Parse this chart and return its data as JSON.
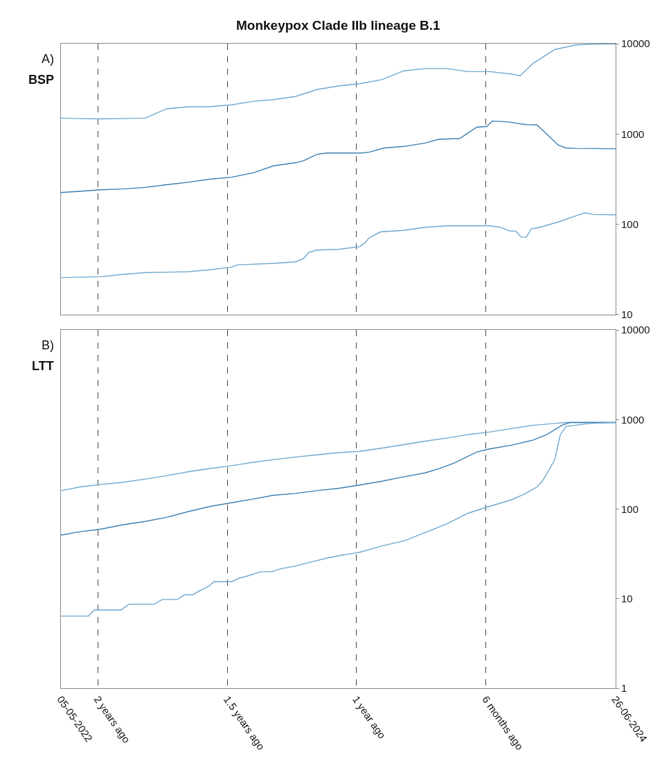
{
  "chart_data": [
    {
      "type": "line",
      "title": "Monkeypox Clade IIb lineage B.1",
      "annotations": [
        "A)",
        "BSP"
      ],
      "log": "y",
      "grid": "x",
      "tick_labels": "y",
      "xlim": [
        "2022-05-05",
        "2024-06-26"
      ],
      "xticks": [
        {
          "value": "2022-05-05",
          "label": null
        },
        {
          "value": "2022-06-26",
          "label": null
        },
        {
          "value": "2022-12-26",
          "label": null
        },
        {
          "value": "2023-06-26",
          "label": null
        },
        {
          "value": "2023-12-26",
          "label": null
        },
        {
          "value": "2024-06-26",
          "label": null
        }
      ],
      "ylim": [
        10,
        10000
      ],
      "yticks": [
        10,
        100,
        1000,
        10000
      ],
      "series": [
        {
          "color": "#6fa8d0",
          "x": [
            "2022-05-05",
            "2022-06-01",
            "2022-07-01",
            "2022-08-01",
            "2022-09-01",
            "2022-10-01",
            "2022-11-01",
            "2022-12-01",
            "2023-01-01",
            "2023-02-01",
            "2023-03-01",
            "2023-04-01",
            "2023-05-01",
            "2023-06-01",
            "2023-07-01",
            "2023-08-01",
            "2023-09-01",
            "2023-10-01",
            "2023-11-01",
            "2023-12-01",
            "2024-01-01",
            "2024-02-01",
            "2024-02-12",
            "2024-03-01",
            "2024-04-01",
            "2024-05-01",
            "2024-06-01",
            "2024-06-26"
          ],
          "values": [
            1500,
            1480,
            1470,
            1480,
            1500,
            1900,
            2000,
            2000,
            2100,
            2300,
            2400,
            2600,
            3100,
            3400,
            3600,
            4000,
            5000,
            5300,
            5300,
            4900,
            4900,
            4600,
            4400,
            6000,
            8600,
            9700,
            9900,
            9900
          ]
        },
        {
          "color": "#3a7fb3",
          "x": [
            "2022-05-05",
            "2022-06-01",
            "2022-07-01",
            "2022-08-01",
            "2022-09-01",
            "2022-10-01",
            "2022-11-01",
            "2022-12-01",
            "2023-01-01",
            "2023-02-01",
            "2023-03-01",
            "2023-04-01",
            "2023-04-12",
            "2023-05-01",
            "2023-05-15",
            "2023-07-03",
            "2023-07-14",
            "2023-08-04",
            "2023-09-01",
            "2023-10-01",
            "2023-10-20",
            "2023-11-19",
            "2023-11-27",
            "2023-12-13",
            "2023-12-27",
            "2024-01-04",
            "2024-01-26",
            "2024-02-20",
            "2024-03-07",
            "2024-04-06",
            "2024-04-17",
            "2024-05-01",
            "2024-06-26"
          ],
          "values": [
            225,
            232,
            241,
            246,
            256,
            274,
            292,
            316,
            332,
            373,
            444,
            480,
            503,
            593,
            616,
            616,
            628,
            700,
            727,
            793,
            873,
            891,
            982,
            1190,
            1210,
            1390,
            1360,
            1270,
            1260,
            755,
            700,
            692,
            686
          ]
        },
        {
          "color": "#6fa8d0",
          "x": [
            "2022-05-05",
            "2022-07-01",
            "2022-08-01",
            "2022-09-01",
            "2022-11-01",
            "2022-12-01",
            "2023-01-01",
            "2023-01-09",
            "2023-03-01",
            "2023-04-01",
            "2023-04-12",
            "2023-04-20",
            "2023-05-01",
            "2023-06-01",
            "2023-07-01",
            "2023-07-08",
            "2023-07-14",
            "2023-07-30",
            "2023-09-01",
            "2023-10-01",
            "2023-11-01",
            "2023-12-01",
            "2024-01-01",
            "2024-01-15",
            "2024-01-29",
            "2024-02-06",
            "2024-02-14",
            "2024-02-21",
            "2024-02-28",
            "2024-03-10",
            "2024-04-06",
            "2024-05-01",
            "2024-05-14",
            "2024-05-25",
            "2024-06-26"
          ],
          "values": [
            25.6,
            26.3,
            27.9,
            29.2,
            29.8,
            31.3,
            33.5,
            35.5,
            36.9,
            38.4,
            41.5,
            48.9,
            51.8,
            52.8,
            56.5,
            62.2,
            70.6,
            82.4,
            85.7,
            92.5,
            96.2,
            96.2,
            96.2,
            92.5,
            84,
            84,
            72,
            72,
            89,
            92,
            106,
            124,
            134,
            128.5,
            127
          ]
        }
      ]
    },
    {
      "type": "line",
      "annotations": [
        "B)",
        "LTT"
      ],
      "log": "y",
      "grid": "x",
      "xlim": [
        "2022-05-05",
        "2024-06-26"
      ],
      "xticks": [
        {
          "value": "2022-05-05",
          "label": "05-05-2022"
        },
        {
          "value": "2022-06-26",
          "label": "2 years ago"
        },
        {
          "value": "2022-12-26",
          "label": "1.5 years ago"
        },
        {
          "value": "2023-06-26",
          "label": "1 year ago"
        },
        {
          "value": "2023-12-26",
          "label": "6 months ago"
        },
        {
          "value": "2024-06-26",
          "label": "26-06-2024"
        }
      ],
      "ylim": [
        1,
        10000
      ],
      "yticks": [
        1,
        10,
        100,
        1000,
        10000
      ],
      "series": [
        {
          "color": "#6fa8d0",
          "x": [
            "2022-05-05",
            "2022-06-01",
            "2022-07-01",
            "2022-08-01",
            "2022-09-01",
            "2022-10-01",
            "2022-11-01",
            "2022-12-01",
            "2023-01-01",
            "2023-02-01",
            "2023-03-01",
            "2023-04-01",
            "2023-05-01",
            "2023-06-01",
            "2023-07-01",
            "2023-08-01",
            "2023-09-01",
            "2023-10-01",
            "2023-11-01",
            "2023-12-01",
            "2024-01-01",
            "2024-02-01",
            "2024-03-01",
            "2024-04-01",
            "2024-04-17",
            "2024-06-26"
          ],
          "values": [
            161,
            177,
            189,
            200,
            217,
            236,
            262,
            284,
            306,
            335,
            357,
            382,
            404,
            428,
            442,
            480,
            525,
            574,
            623,
            681,
            728,
            796,
            863,
            906,
            929,
            929
          ]
        },
        {
          "color": "#3a7fb3",
          "x": [
            "2022-05-05",
            "2022-06-01",
            "2022-07-01",
            "2022-08-01",
            "2022-09-01",
            "2022-10-01",
            "2022-11-01",
            "2022-12-01",
            "2023-01-01",
            "2023-02-01",
            "2023-03-01",
            "2023-04-01",
            "2023-05-01",
            "2023-06-01",
            "2023-07-01",
            "2023-08-01",
            "2023-09-01",
            "2023-10-01",
            "2023-10-20",
            "2023-11-11",
            "2023-12-13",
            "2024-01-01",
            "2024-02-01",
            "2024-03-01",
            "2024-03-21",
            "2024-04-12",
            "2024-04-23",
            "2024-06-26"
          ],
          "values": [
            51.3,
            56,
            60,
            67,
            73,
            81,
            94,
            107,
            118,
            130,
            143,
            150,
            161,
            171,
            186,
            205,
            230,
            254,
            282,
            327,
            435,
            472,
            520,
            589,
            681,
            871,
            929,
            929
          ]
        },
        {
          "color": "#6fa8d0",
          "x": [
            "2022-05-05",
            "2022-06-13",
            "2022-06-21",
            "2022-07-29",
            "2022-08-09",
            "2022-09-14",
            "2022-09-25",
            "2022-10-16",
            "2022-10-27",
            "2022-11-07",
            "2022-11-18",
            "2022-11-29",
            "2022-12-07",
            "2023-01-01",
            "2023-01-12",
            "2023-01-25",
            "2023-02-11",
            "2023-02-27",
            "2023-03-10",
            "2023-04-01",
            "2023-04-23",
            "2023-05-15",
            "2023-06-05",
            "2023-07-01",
            "2023-08-01",
            "2023-09-01",
            "2023-10-01",
            "2023-11-01",
            "2023-12-01",
            "2024-01-01",
            "2024-02-01",
            "2024-02-20",
            "2024-03-07",
            "2024-03-15",
            "2024-04-01",
            "2024-04-09",
            "2024-04-17",
            "2024-05-20",
            "2024-06-26"
          ],
          "values": [
            6.4,
            6.4,
            7.5,
            7.5,
            8.7,
            8.7,
            9.8,
            9.8,
            11.1,
            11.1,
            12.4,
            13.7,
            15.5,
            15.5,
            17,
            18.1,
            20,
            20,
            21.5,
            23.2,
            25.7,
            28.4,
            30.6,
            33,
            38.9,
            44.2,
            54.7,
            68.6,
            90.4,
            108,
            128,
            150,
            177,
            208,
            355,
            681,
            836,
            906,
            929
          ]
        }
      ]
    }
  ]
}
